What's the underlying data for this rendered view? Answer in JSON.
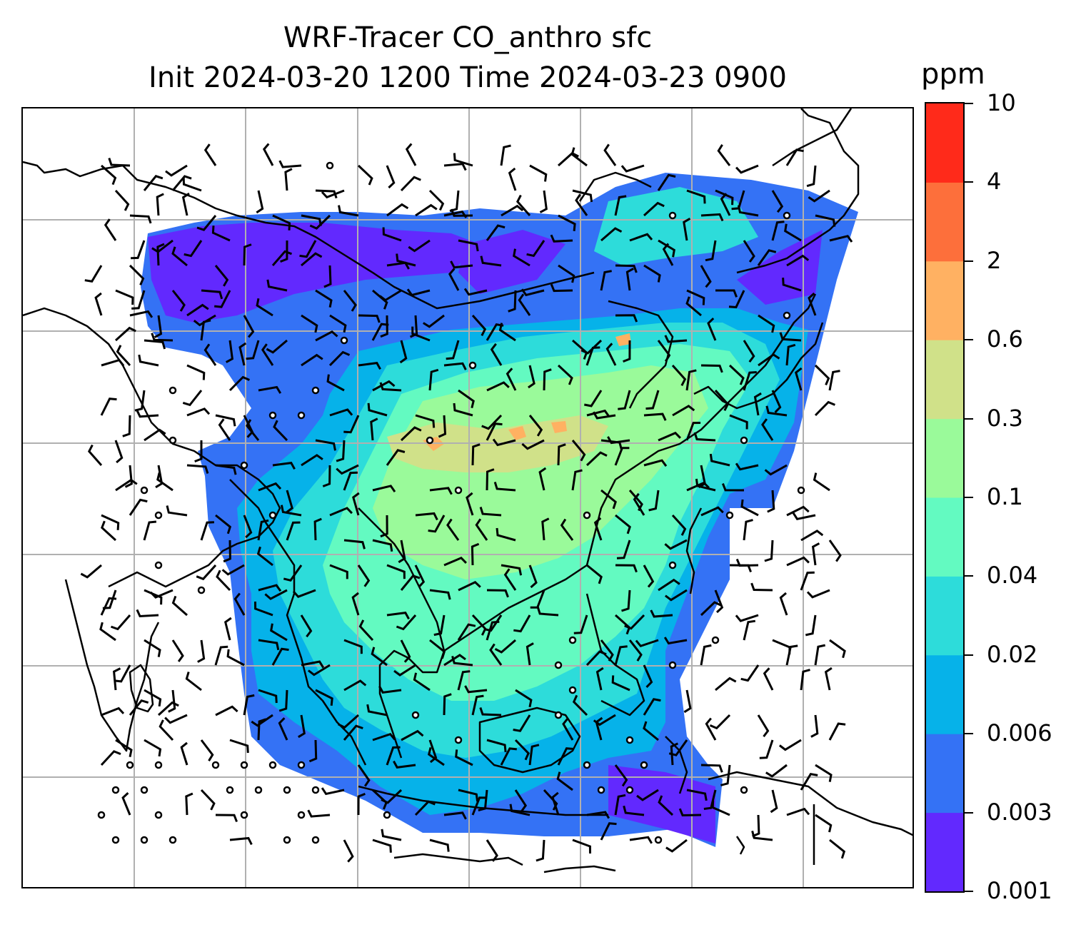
{
  "title": {
    "line1": "WRF-Tracer CO_anthro sfc",
    "line2": "Init 2024-03-20 1200 Time 2024-03-23 0900"
  },
  "colorbar": {
    "unit": "ppm",
    "ticks": [
      "0.001",
      "0.003",
      "0.006",
      "0.02",
      "0.04",
      "0.1",
      "0.3",
      "0.6",
      "2",
      "4",
      "10"
    ],
    "colors": [
      "#6229fe",
      "#3472f5",
      "#06b2e9",
      "#2ddcda",
      "#63fac1",
      "#9afa9a",
      "#d0e189",
      "#ffb162",
      "#fd6f3b",
      "#ff2a1a"
    ]
  },
  "map": {
    "gridlines": true,
    "field_name": "CO_anthro",
    "level": "sfc",
    "overlay": "wind barbs and calm circles"
  }
}
